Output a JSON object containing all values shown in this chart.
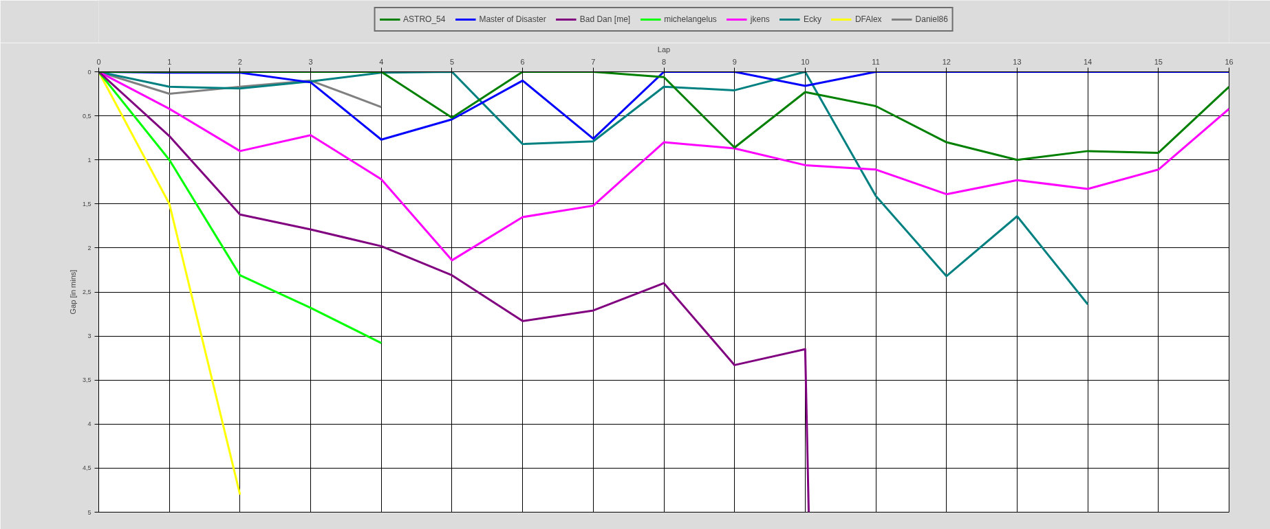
{
  "chart_data": {
    "type": "line",
    "xlabel": "Lap",
    "ylabel": "Gap [in mins]",
    "xlim": [
      0,
      16
    ],
    "xticks": [
      0,
      1,
      2,
      3,
      4,
      5,
      6,
      7,
      8,
      9,
      10,
      11,
      12,
      13,
      14,
      15,
      16
    ],
    "ylim": [
      5,
      0
    ],
    "yticks": [
      0,
      {
        "value": 0.5,
        "label": "0,5"
      },
      1,
      {
        "value": 1.5,
        "label": "1,5"
      },
      2,
      {
        "value": 2.5,
        "label": "2,5"
      },
      3,
      {
        "value": 3.5,
        "label": "3,5"
      },
      4,
      {
        "value": 4.5,
        "label": "4,5"
      },
      5
    ],
    "grid": true,
    "legend": "top",
    "marker": "none",
    "line_style": "solid",
    "series": [
      {
        "name": "ASTRO_54",
        "color": "#008000",
        "x": [
          0,
          1,
          2,
          3,
          4,
          5,
          6,
          7,
          8,
          9,
          10,
          11,
          12,
          13,
          14,
          15,
          16
        ],
        "values": [
          0,
          0,
          0,
          0,
          0,
          0.52,
          0,
          0,
          0.06,
          0.86,
          0.23,
          0.39,
          0.8,
          1.0,
          0.9,
          0.92,
          0.17
        ]
      },
      {
        "name": "Master of Disaster",
        "color": "#0000ff",
        "x": [
          0,
          1,
          2,
          3,
          4,
          5,
          6,
          7,
          8,
          9,
          10,
          11,
          12,
          13,
          14,
          15,
          16
        ],
        "values": [
          0,
          0.01,
          0.01,
          0.12,
          0.77,
          0.54,
          0.1,
          0.76,
          0,
          0,
          0.16,
          0,
          0,
          0,
          0,
          0,
          0
        ]
      },
      {
        "name": "Bad Dan [me]",
        "color": "#800080",
        "x": [
          0,
          1,
          2,
          3,
          4,
          5,
          6,
          7,
          8,
          9,
          10,
          10.05
        ],
        "values": [
          0,
          0.73,
          1.62,
          1.79,
          1.98,
          2.31,
          2.83,
          2.71,
          2.4,
          3.33,
          3.15,
          5
        ]
      },
      {
        "name": "michelangelus",
        "color": "#00ff00",
        "x": [
          0,
          1,
          2,
          3,
          4
        ],
        "values": [
          0,
          1.0,
          2.31,
          2.68,
          3.08
        ]
      },
      {
        "name": "jkens",
        "color": "#ff00ff",
        "x": [
          0,
          1,
          2,
          3,
          4,
          5,
          6,
          7,
          8,
          9,
          10,
          11,
          12,
          13,
          14,
          15,
          16
        ],
        "values": [
          0,
          0.42,
          0.9,
          0.72,
          1.22,
          2.14,
          1.65,
          1.52,
          0.8,
          0.87,
          1.06,
          1.11,
          1.39,
          1.23,
          1.33,
          1.11,
          0.42
        ]
      },
      {
        "name": "Ecky",
        "color": "#008080",
        "x": [
          0,
          1,
          2,
          3,
          4,
          5,
          6,
          7,
          8,
          9,
          10,
          11,
          12,
          13,
          14
        ],
        "values": [
          0,
          0.17,
          0.19,
          0.11,
          0.01,
          0,
          0.82,
          0.79,
          0.17,
          0.21,
          0,
          1.41,
          2.32,
          1.64,
          2.64
        ]
      },
      {
        "name": "DFAlex",
        "color": "#ffff00",
        "x": [
          0,
          1,
          2
        ],
        "values": [
          0,
          1.5,
          4.8
        ]
      },
      {
        "name": "Daniel86",
        "color": "#808080",
        "x": [
          0,
          1,
          2,
          3,
          4
        ],
        "values": [
          0,
          0.25,
          0.17,
          0.1,
          0.4
        ]
      }
    ]
  }
}
